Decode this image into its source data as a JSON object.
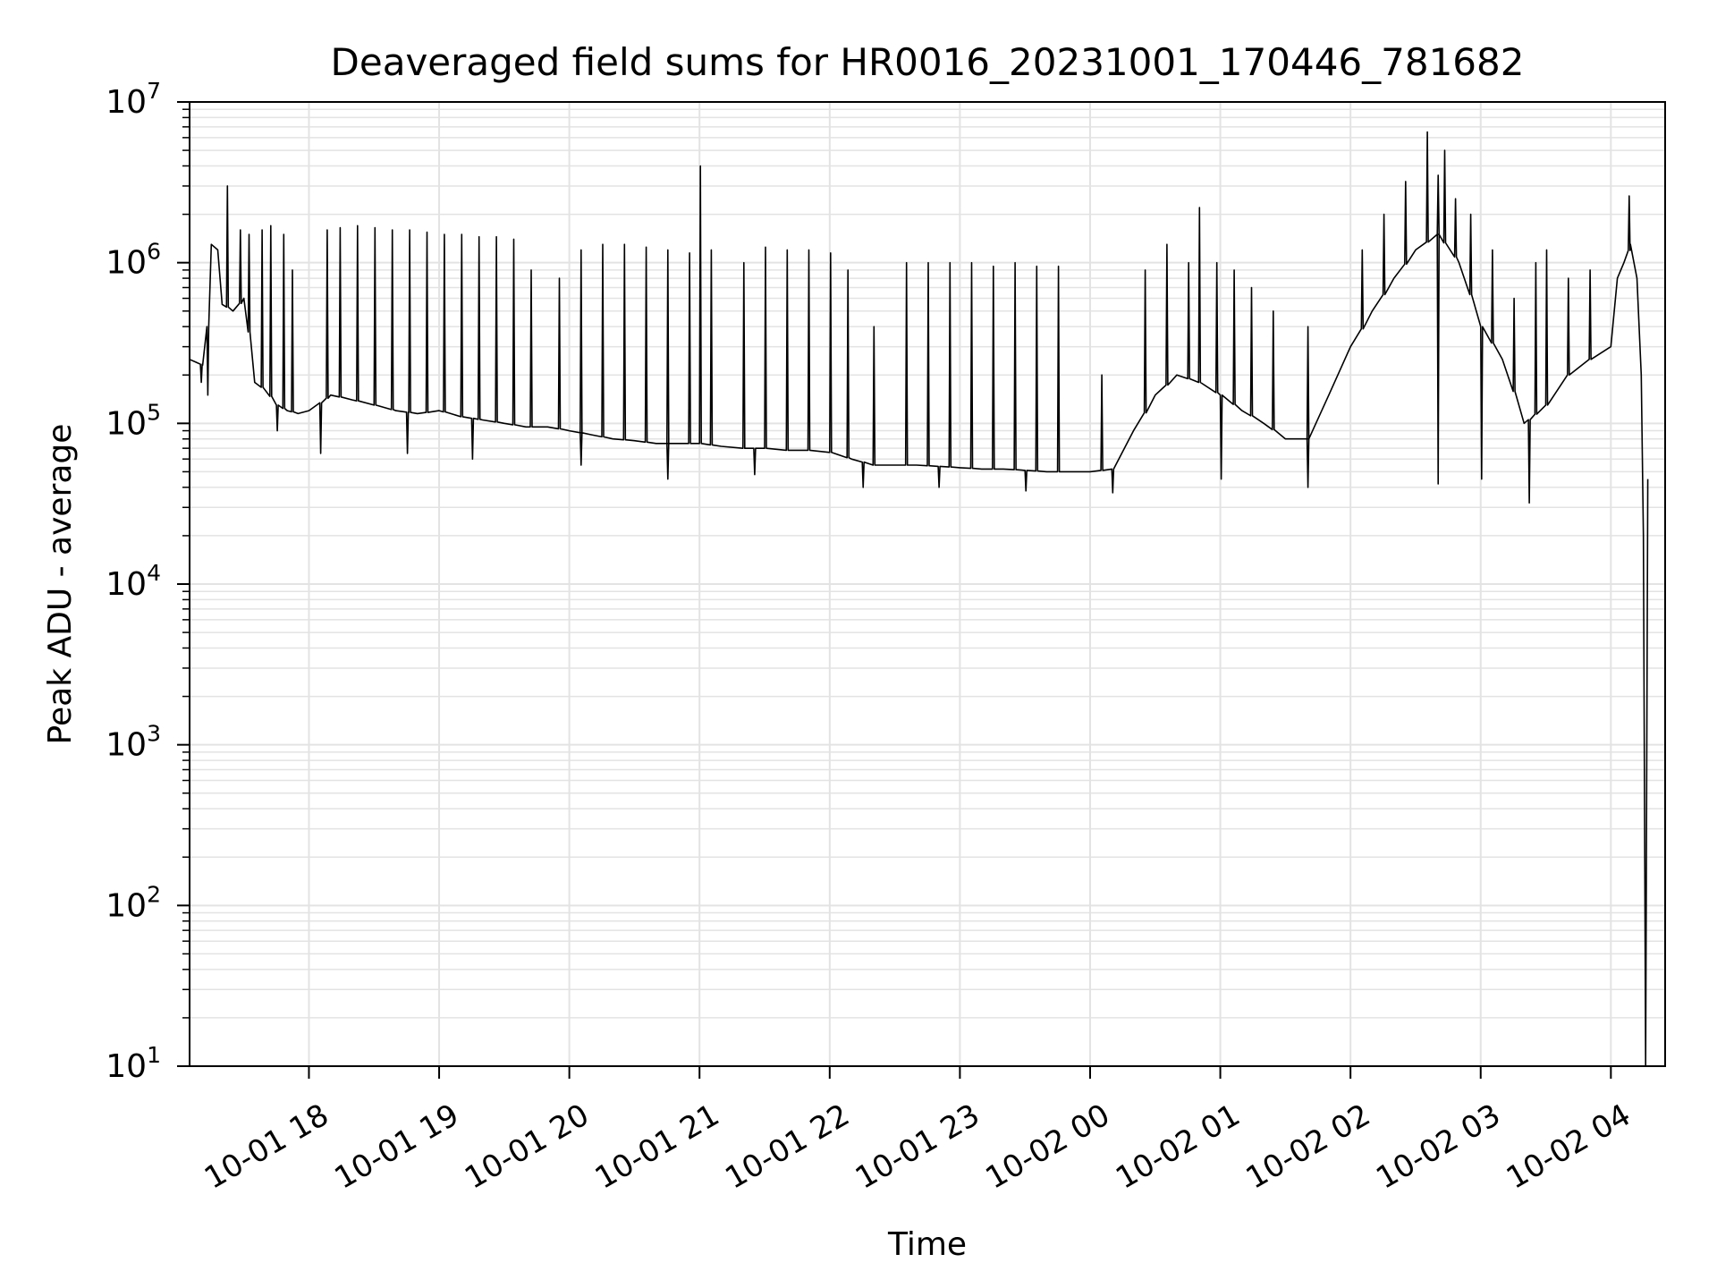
{
  "chart_data": {
    "type": "line",
    "title": "Deaveraged field sums for HR0016_20231001_170446_781682",
    "xlabel": "Time",
    "ylabel": "Peak ADU - average",
    "yscale": "log",
    "ylim": [
      10,
      10000000
    ],
    "xlim": [
      "2023-10-01 17:05",
      "2023-10-02 04:25"
    ],
    "grid": true,
    "line_color": "#000000",
    "grid_color": "#e3e3e3",
    "x_ticks": [
      {
        "at": "2023-10-01 18:00",
        "label": "10-01 18"
      },
      {
        "at": "2023-10-01 19:00",
        "label": "10-01 19"
      },
      {
        "at": "2023-10-01 20:00",
        "label": "10-01 20"
      },
      {
        "at": "2023-10-01 21:00",
        "label": "10-01 21"
      },
      {
        "at": "2023-10-01 22:00",
        "label": "10-01 22"
      },
      {
        "at": "2023-10-01 23:00",
        "label": "10-01 23"
      },
      {
        "at": "2023-10-02 00:00",
        "label": "10-02 00"
      },
      {
        "at": "2023-10-02 01:00",
        "label": "10-02 01"
      },
      {
        "at": "2023-10-02 02:00",
        "label": "10-02 02"
      },
      {
        "at": "2023-10-02 03:00",
        "label": "10-02 03"
      },
      {
        "at": "2023-10-02 04:00",
        "label": "10-02 04"
      }
    ],
    "y_ticks": [
      {
        "value": 10,
        "base": "10",
        "exp": "1"
      },
      {
        "value": 100,
        "base": "10",
        "exp": "2"
      },
      {
        "value": 1000,
        "base": "10",
        "exp": "3"
      },
      {
        "value": 10000,
        "base": "10",
        "exp": "4"
      },
      {
        "value": 100000,
        "base": "10",
        "exp": "5"
      },
      {
        "value": 1000000,
        "base": "10",
        "exp": "6"
      },
      {
        "value": 10000000,
        "base": "10",
        "exp": "7"
      }
    ],
    "series": [
      {
        "points": [
          [
            "2023-10-01 17:05",
            250000
          ],
          [
            "2023-10-01 17:08",
            240000
          ],
          [
            "2023-10-01 17:11",
            230000
          ],
          [
            "2023-10-01 17:13",
            400000
          ],
          [
            "2023-10-01 17:15",
            1300000
          ],
          [
            "2023-10-01 17:18",
            1200000
          ],
          [
            "2023-10-01 17:20",
            550000
          ],
          [
            "2023-10-01 17:25",
            500000
          ],
          [
            "2023-10-01 17:30",
            600000
          ],
          [
            "2023-10-01 17:35",
            180000
          ],
          [
            "2023-10-01 17:40",
            160000
          ],
          [
            "2023-10-01 17:45",
            130000
          ],
          [
            "2023-10-01 17:50",
            120000
          ],
          [
            "2023-10-01 17:55",
            115000
          ],
          [
            "2023-10-01 18:00",
            120000
          ],
          [
            "2023-10-01 18:10",
            150000
          ],
          [
            "2023-10-01 18:20",
            140000
          ],
          [
            "2023-10-01 18:30",
            130000
          ],
          [
            "2023-10-01 18:40",
            120000
          ],
          [
            "2023-10-01 18:50",
            115000
          ],
          [
            "2023-10-01 19:00",
            120000
          ],
          [
            "2023-10-01 19:10",
            110000
          ],
          [
            "2023-10-01 19:20",
            105000
          ],
          [
            "2023-10-01 19:30",
            100000
          ],
          [
            "2023-10-01 19:40",
            95000
          ],
          [
            "2023-10-01 19:50",
            95000
          ],
          [
            "2023-10-01 20:00",
            90000
          ],
          [
            "2023-10-01 20:10",
            85000
          ],
          [
            "2023-10-01 20:20",
            80000
          ],
          [
            "2023-10-01 20:30",
            78000
          ],
          [
            "2023-10-01 20:40",
            75000
          ],
          [
            "2023-10-01 20:50",
            75000
          ],
          [
            "2023-10-01 21:00",
            75000
          ],
          [
            "2023-10-01 21:10",
            72000
          ],
          [
            "2023-10-01 21:20",
            70000
          ],
          [
            "2023-10-01 21:30",
            70000
          ],
          [
            "2023-10-01 21:40",
            68000
          ],
          [
            "2023-10-01 21:50",
            68000
          ],
          [
            "2023-10-01 22:00",
            66000
          ],
          [
            "2023-10-01 22:10",
            60000
          ],
          [
            "2023-10-01 22:20",
            55000
          ],
          [
            "2023-10-01 22:30",
            55000
          ],
          [
            "2023-10-01 22:40",
            55000
          ],
          [
            "2023-10-01 22:50",
            54000
          ],
          [
            "2023-10-01 23:00",
            53000
          ],
          [
            "2023-10-01 23:10",
            52000
          ],
          [
            "2023-10-01 23:20",
            52000
          ],
          [
            "2023-10-01 23:30",
            51000
          ],
          [
            "2023-10-01 23:40",
            50000
          ],
          [
            "2023-10-01 23:50",
            50000
          ],
          [
            "2023-10-02 00:00",
            50000
          ],
          [
            "2023-10-02 00:10",
            52000
          ],
          [
            "2023-10-02 00:20",
            90000
          ],
          [
            "2023-10-02 00:30",
            150000
          ],
          [
            "2023-10-02 00:40",
            200000
          ],
          [
            "2023-10-02 00:50",
            180000
          ],
          [
            "2023-10-02 01:00",
            150000
          ],
          [
            "2023-10-02 01:10",
            120000
          ],
          [
            "2023-10-02 01:20",
            100000
          ],
          [
            "2023-10-02 01:30",
            80000
          ],
          [
            "2023-10-02 01:40",
            80000
          ],
          [
            "2023-10-02 01:50",
            150000
          ],
          [
            "2023-10-02 02:00",
            300000
          ],
          [
            "2023-10-02 02:10",
            500000
          ],
          [
            "2023-10-02 02:20",
            800000
          ],
          [
            "2023-10-02 02:30",
            1200000
          ],
          [
            "2023-10-02 02:40",
            1500000
          ],
          [
            "2023-10-02 02:50",
            1000000
          ],
          [
            "2023-10-02 03:00",
            400000
          ],
          [
            "2023-10-02 03:10",
            250000
          ],
          [
            "2023-10-02 03:20",
            100000
          ],
          [
            "2023-10-02 03:30",
            130000
          ],
          [
            "2023-10-02 03:40",
            200000
          ],
          [
            "2023-10-02 03:50",
            250000
          ],
          [
            "2023-10-02 04:00",
            300000
          ],
          [
            "2023-10-02 04:03",
            800000
          ],
          [
            "2023-10-02 04:06",
            1000000
          ],
          [
            "2023-10-02 04:09",
            1300000
          ],
          [
            "2023-10-02 04:12",
            800000
          ],
          [
            "2023-10-02 04:14",
            200000
          ],
          [
            "2023-10-02 04:15",
            20000
          ],
          [
            "2023-10-02 04:16",
            10
          ],
          [
            "2023-10-02 04:17",
            45000
          ]
        ],
        "spikes": [
          [
            "2023-10-01 17:22",
            3000000
          ],
          [
            "2023-10-01 17:28",
            1600000
          ],
          [
            "2023-10-01 17:32",
            1500000
          ],
          [
            "2023-10-01 17:38",
            1600000
          ],
          [
            "2023-10-01 17:42",
            1700000
          ],
          [
            "2023-10-01 17:48",
            1500000
          ],
          [
            "2023-10-01 17:52",
            900000
          ],
          [
            "2023-10-01 18:08",
            1600000
          ],
          [
            "2023-10-01 18:14",
            1650000
          ],
          [
            "2023-10-01 18:22",
            1700000
          ],
          [
            "2023-10-01 18:30",
            1650000
          ],
          [
            "2023-10-01 18:38",
            1600000
          ],
          [
            "2023-10-01 18:46",
            1600000
          ],
          [
            "2023-10-01 18:54",
            1550000
          ],
          [
            "2023-10-01 19:02",
            1500000
          ],
          [
            "2023-10-01 19:10",
            1500000
          ],
          [
            "2023-10-01 19:18",
            1450000
          ],
          [
            "2023-10-01 19:26",
            1450000
          ],
          [
            "2023-10-01 19:34",
            1400000
          ],
          [
            "2023-10-01 19:42",
            900000
          ],
          [
            "2023-10-01 19:55",
            800000
          ],
          [
            "2023-10-01 20:05",
            1200000
          ],
          [
            "2023-10-01 20:15",
            1300000
          ],
          [
            "2023-10-01 20:25",
            1300000
          ],
          [
            "2023-10-01 20:35",
            1250000
          ],
          [
            "2023-10-01 20:45",
            1200000
          ],
          [
            "2023-10-01 20:55",
            1150000
          ],
          [
            "2023-10-01 21:00",
            4000000
          ],
          [
            "2023-10-01 21:05",
            1200000
          ],
          [
            "2023-10-01 21:20",
            1000000
          ],
          [
            "2023-10-01 21:30",
            1250000
          ],
          [
            "2023-10-01 21:40",
            1200000
          ],
          [
            "2023-10-01 21:50",
            1200000
          ],
          [
            "2023-10-01 22:00",
            1150000
          ],
          [
            "2023-10-01 22:08",
            900000
          ],
          [
            "2023-10-01 22:20",
            400000
          ],
          [
            "2023-10-01 22:35",
            1000000
          ],
          [
            "2023-10-01 22:45",
            1000000
          ],
          [
            "2023-10-01 22:55",
            1000000
          ],
          [
            "2023-10-01 23:05",
            1000000
          ],
          [
            "2023-10-01 23:15",
            950000
          ],
          [
            "2023-10-01 23:25",
            1000000
          ],
          [
            "2023-10-01 23:35",
            950000
          ],
          [
            "2023-10-01 23:45",
            950000
          ],
          [
            "2023-10-02 00:05",
            200000
          ],
          [
            "2023-10-02 00:25",
            900000
          ],
          [
            "2023-10-02 00:35",
            1300000
          ],
          [
            "2023-10-02 00:45",
            1000000
          ],
          [
            "2023-10-02 00:50",
            2200000
          ],
          [
            "2023-10-02 00:58",
            1000000
          ],
          [
            "2023-10-02 01:06",
            900000
          ],
          [
            "2023-10-02 01:14",
            700000
          ],
          [
            "2023-10-02 01:24",
            500000
          ],
          [
            "2023-10-02 01:40",
            400000
          ],
          [
            "2023-10-02 02:05",
            1200000
          ],
          [
            "2023-10-02 02:15",
            2000000
          ],
          [
            "2023-10-02 02:25",
            3200000
          ],
          [
            "2023-10-02 02:35",
            6500000
          ],
          [
            "2023-10-02 02:40",
            3500000
          ],
          [
            "2023-10-02 02:43",
            5000000
          ],
          [
            "2023-10-02 02:48",
            2500000
          ],
          [
            "2023-10-02 02:55",
            2000000
          ],
          [
            "2023-10-02 03:05",
            1200000
          ],
          [
            "2023-10-02 03:15",
            600000
          ],
          [
            "2023-10-02 03:25",
            1000000
          ],
          [
            "2023-10-02 03:30",
            1200000
          ],
          [
            "2023-10-02 03:40",
            800000
          ],
          [
            "2023-10-02 03:50",
            900000
          ],
          [
            "2023-10-02 04:08",
            2600000
          ]
        ],
        "dips": [
          [
            "2023-10-01 17:10",
            180000
          ],
          [
            "2023-10-01 17:13",
            150000
          ],
          [
            "2023-10-01 17:45",
            90000
          ],
          [
            "2023-10-01 18:05",
            65000
          ],
          [
            "2023-10-01 18:45",
            65000
          ],
          [
            "2023-10-01 19:15",
            60000
          ],
          [
            "2023-10-01 20:05",
            55000
          ],
          [
            "2023-10-01 20:45",
            45000
          ],
          [
            "2023-10-01 21:25",
            48000
          ],
          [
            "2023-10-01 22:15",
            40000
          ],
          [
            "2023-10-01 22:50",
            40000
          ],
          [
            "2023-10-01 23:30",
            38000
          ],
          [
            "2023-10-02 00:10",
            37000
          ],
          [
            "2023-10-02 01:00",
            45000
          ],
          [
            "2023-10-02 01:40",
            40000
          ],
          [
            "2023-10-02 02:40",
            42000
          ],
          [
            "2023-10-02 03:00",
            45000
          ],
          [
            "2023-10-02 03:22",
            32000
          ]
        ]
      }
    ]
  }
}
